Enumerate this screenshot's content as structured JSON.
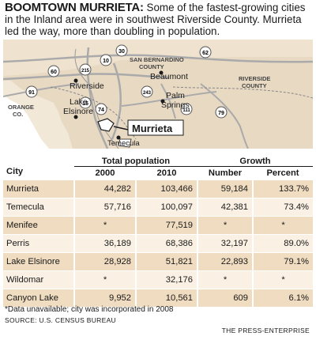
{
  "headline": {
    "kicker": "BOOMTOWN MURRIETA:",
    "text": " Some of the fastest-growing cities in the Inland area were in southwest Riverside County. Murrieta led the way, more than doubling in population."
  },
  "map": {
    "labels": {
      "san_bernardino": "SAN BERNARDINO",
      "county": "COUNTY",
      "riverside_county_1": "RIVERSIDE",
      "riverside_county_2": "COUNTY",
      "orange_1": "ORANGE",
      "orange_2": "CO.",
      "riverside": "Riverside",
      "lake": "Lake",
      "elsinore": "Elsinore",
      "beaumont": "Beaumont",
      "palm": "Palm",
      "springs": "Springs",
      "temecula": "Temecula",
      "murrieta": "Murrieta"
    },
    "shields": {
      "s30": "30",
      "s10": "10",
      "s62": "62",
      "s60": "60",
      "s215": "215",
      "s91": "91",
      "s15": "15",
      "s74": "74",
      "s243": "243",
      "s111": "111",
      "s79": "79"
    }
  },
  "table": {
    "headers": {
      "city": "City",
      "total_population": "Total population",
      "y2000": "2000",
      "y2010": "2010",
      "growth": "Growth",
      "number": "Number",
      "percent": "Percent"
    },
    "rows": [
      {
        "city": "Murrieta",
        "p2000": "44,282",
        "p2010": "103,466",
        "number": "59,184",
        "percent": "133.7%"
      },
      {
        "city": "Temecula",
        "p2000": "57,716",
        "p2010": "100,097",
        "number": "42,381",
        "percent": "73.4%"
      },
      {
        "city": "Menifee",
        "p2000": "*",
        "p2010": "77,519",
        "number": "*",
        "percent": "*"
      },
      {
        "city": "Perris",
        "p2000": "36,189",
        "p2010": "68,386",
        "number": "32,197",
        "percent": "89.0%"
      },
      {
        "city": "Lake Elsinore",
        "p2000": "28,928",
        "p2010": "51,821",
        "number": "22,893",
        "percent": "79.1%"
      },
      {
        "city": "Wildomar",
        "p2000": "*",
        "p2010": "32,176",
        "number": "*",
        "percent": "*"
      },
      {
        "city": "Canyon Lake",
        "p2000": "9,952",
        "p2010": "10,561",
        "number": "609",
        "percent": "6.1%"
      }
    ]
  },
  "footnote": "*Data unavailable; city was incorporated in 2008",
  "source": "SOURCE: U.S. CENSUS BUREAU",
  "credit": "THE PRESS-ENTERPRISE"
}
